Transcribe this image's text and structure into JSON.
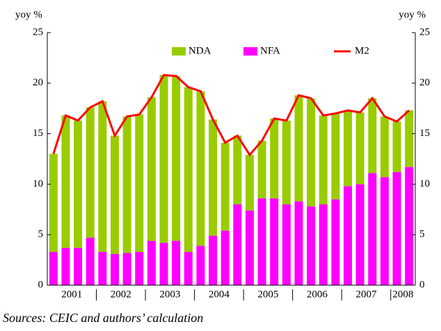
{
  "chart_data": {
    "type": "stacked_bar_line",
    "y_label": "yoy %",
    "y2_label": "yoy %",
    "source": "Sources: CEIC and authors’ calculation",
    "groups": [
      {
        "label": "2001",
        "size": 4
      },
      {
        "label": "2002",
        "size": 4
      },
      {
        "label": "2003",
        "size": 4
      },
      {
        "label": "2004",
        "size": 4
      },
      {
        "label": "2005",
        "size": 4
      },
      {
        "label": "2006",
        "size": 4
      },
      {
        "label": "2007",
        "size": 4
      },
      {
        "label": "2008",
        "size": 2
      }
    ],
    "ylim": [
      0,
      25
    ],
    "yticks": [
      0,
      5,
      10,
      15,
      20,
      25
    ],
    "y2lim": [
      0,
      25
    ],
    "y2ticks": [
      0,
      5,
      10,
      15,
      20,
      25
    ],
    "legend": "top",
    "series": [
      {
        "name": "NDA",
        "color": "#99cc00",
        "kind": "bar",
        "values": [
          9.7,
          13.1,
          12.6,
          12.9,
          14.9,
          11.7,
          13.5,
          13.6,
          14.2,
          16.6,
          16.3,
          16.3,
          15.3,
          11.5,
          8.7,
          6.8,
          5.5,
          5.7,
          7.9,
          8.3,
          10.5,
          10.7,
          8.8,
          8.5,
          7.5,
          7.1,
          7.4,
          6.0,
          5.0,
          5.6
        ]
      },
      {
        "name": "NFA",
        "color": "#ff00ff",
        "kind": "bar",
        "values": [
          3.3,
          3.7,
          3.7,
          4.7,
          3.3,
          3.1,
          3.2,
          3.3,
          4.4,
          4.2,
          4.4,
          3.3,
          3.9,
          4.9,
          5.4,
          8.0,
          7.4,
          8.6,
          8.6,
          8.0,
          8.3,
          7.8,
          8.0,
          8.5,
          9.8,
          10.0,
          11.1,
          10.7,
          11.2,
          11.7
        ]
      },
      {
        "name": "M2",
        "color": "#ff0000",
        "kind": "line",
        "values": [
          13.0,
          16.8,
          16.3,
          17.6,
          18.2,
          14.8,
          16.7,
          16.9,
          18.6,
          20.8,
          20.7,
          19.6,
          19.2,
          16.4,
          14.1,
          14.8,
          12.9,
          14.3,
          16.5,
          16.3,
          18.8,
          18.5,
          16.8,
          17.0,
          17.3,
          17.1,
          18.5,
          16.7,
          16.2,
          17.3
        ]
      }
    ]
  }
}
